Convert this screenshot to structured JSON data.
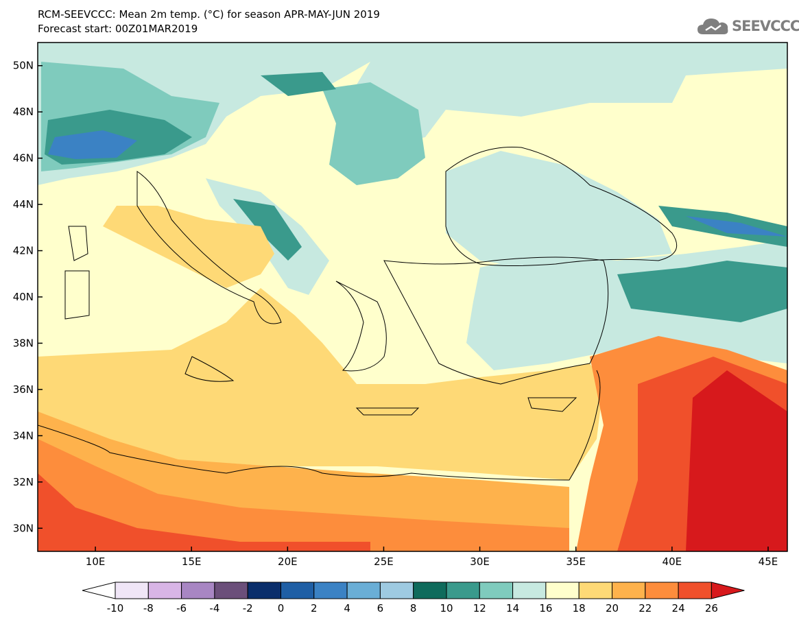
{
  "title": {
    "line1": "RCM-SEEVCCC: Mean 2m temp. (°C) for season APR-MAY-JUN 2019",
    "line2": "Forecast start: 00Z01MAR2019"
  },
  "logo": {
    "text": "SEEVCCC",
    "icon": "cloud-icon"
  },
  "map": {
    "lat_ticks": [
      "50N",
      "48N",
      "46N",
      "44N",
      "42N",
      "40N",
      "38N",
      "36N",
      "34N",
      "32N",
      "30N"
    ],
    "lon_ticks": [
      "10E",
      "15E",
      "20E",
      "25E",
      "30E",
      "35E",
      "40E",
      "45E"
    ],
    "lon_range": [
      7,
      46
    ],
    "lat_range": [
      29,
      51
    ]
  },
  "colorbar": {
    "labels": [
      "-10",
      "-8",
      "-6",
      "-4",
      "-2",
      "0",
      "2",
      "4",
      "6",
      "8",
      "10",
      "12",
      "14",
      "16",
      "18",
      "20",
      "22",
      "24",
      "26"
    ],
    "colors": [
      "#f0e6f7",
      "#d8b5e6",
      "#a886c3",
      "#6b4f7a",
      "#0a2e6b",
      "#1f5fa5",
      "#3b82c4",
      "#6aaed6",
      "#9ecae1",
      "#0f6b5c",
      "#3a9a8c",
      "#7fcbbd",
      "#c7e9e0",
      "#ffffcc",
      "#fed976",
      "#feb24c",
      "#fd8d3c",
      "#f0502b"
    ],
    "under_color": "#ffffff",
    "over_color": "#d7191c"
  }
}
